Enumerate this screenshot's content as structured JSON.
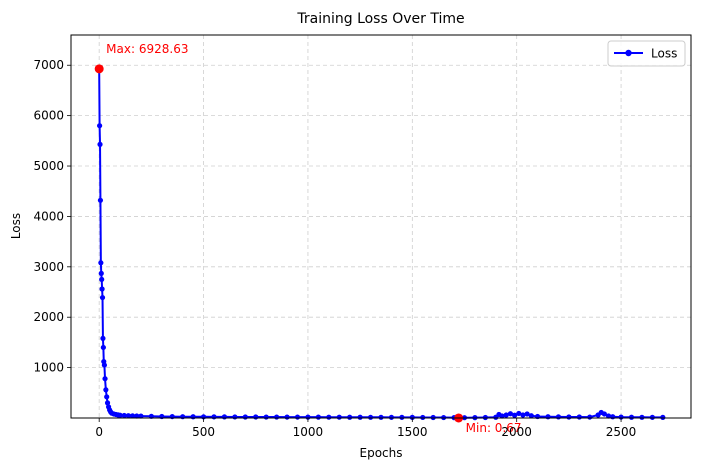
{
  "chart_data": {
    "type": "line",
    "title": "Training Loss Over Time",
    "xlabel": "Epochs",
    "ylabel": "Loss",
    "xlim": [
      -135,
      2835
    ],
    "ylim": [
      0,
      7600
    ],
    "xticks": [
      0,
      500,
      1000,
      1500,
      2000,
      2500
    ],
    "yticks": [
      1000,
      2000,
      3000,
      4000,
      5000,
      6000,
      7000
    ],
    "grid": true,
    "legend_position": "upper-right",
    "series": [
      {
        "name": "Loss",
        "color": "#0000ff",
        "marker": "circle",
        "x": [
          0,
          2,
          4,
          6,
          8,
          10,
          12,
          14,
          16,
          18,
          20,
          22,
          25,
          28,
          32,
          36,
          40,
          45,
          50,
          55,
          60,
          70,
          80,
          90,
          100,
          120,
          140,
          160,
          180,
          200,
          250,
          300,
          350,
          400,
          450,
          500,
          550,
          600,
          650,
          700,
          750,
          800,
          850,
          900,
          950,
          1000,
          1050,
          1100,
          1150,
          1200,
          1250,
          1300,
          1350,
          1400,
          1450,
          1500,
          1550,
          1600,
          1650,
          1700,
          1722,
          1750,
          1800,
          1850,
          1900,
          1915,
          1930,
          1950,
          1970,
          1990,
          2010,
          2030,
          2050,
          2070,
          2100,
          2150,
          2200,
          2250,
          2300,
          2350,
          2390,
          2405,
          2420,
          2440,
          2460,
          2500,
          2550,
          2600,
          2650,
          2700
        ],
        "y": [
          6928.63,
          5800,
          5430,
          4320,
          3080,
          2870,
          2750,
          2560,
          2390,
          1580,
          1400,
          1120,
          1050,
          780,
          560,
          420,
          300,
          220,
          160,
          120,
          95,
          80,
          70,
          62,
          55,
          50,
          46,
          43,
          40,
          38,
          34,
          30,
          28,
          26,
          25,
          24,
          23,
          22,
          21,
          20,
          20,
          19,
          19,
          18,
          18,
          17,
          17,
          16,
          16,
          15,
          15,
          14,
          14,
          13,
          13,
          12,
          11,
          10,
          9,
          8,
          0.67,
          6,
          8,
          10,
          15,
          70,
          40,
          60,
          85,
          55,
          90,
          60,
          80,
          45,
          30,
          25,
          22,
          20,
          20,
          18,
          60,
          110,
          80,
          40,
          25,
          18,
          15,
          14,
          13,
          12
        ]
      }
    ],
    "annotations": [
      {
        "text": "Max: 6928.63",
        "x": 0,
        "y": 6928.63,
        "color": "#ff0000"
      },
      {
        "text": "Min: 0.67",
        "x": 1722,
        "y": 0.67,
        "color": "#ff0000"
      }
    ]
  }
}
